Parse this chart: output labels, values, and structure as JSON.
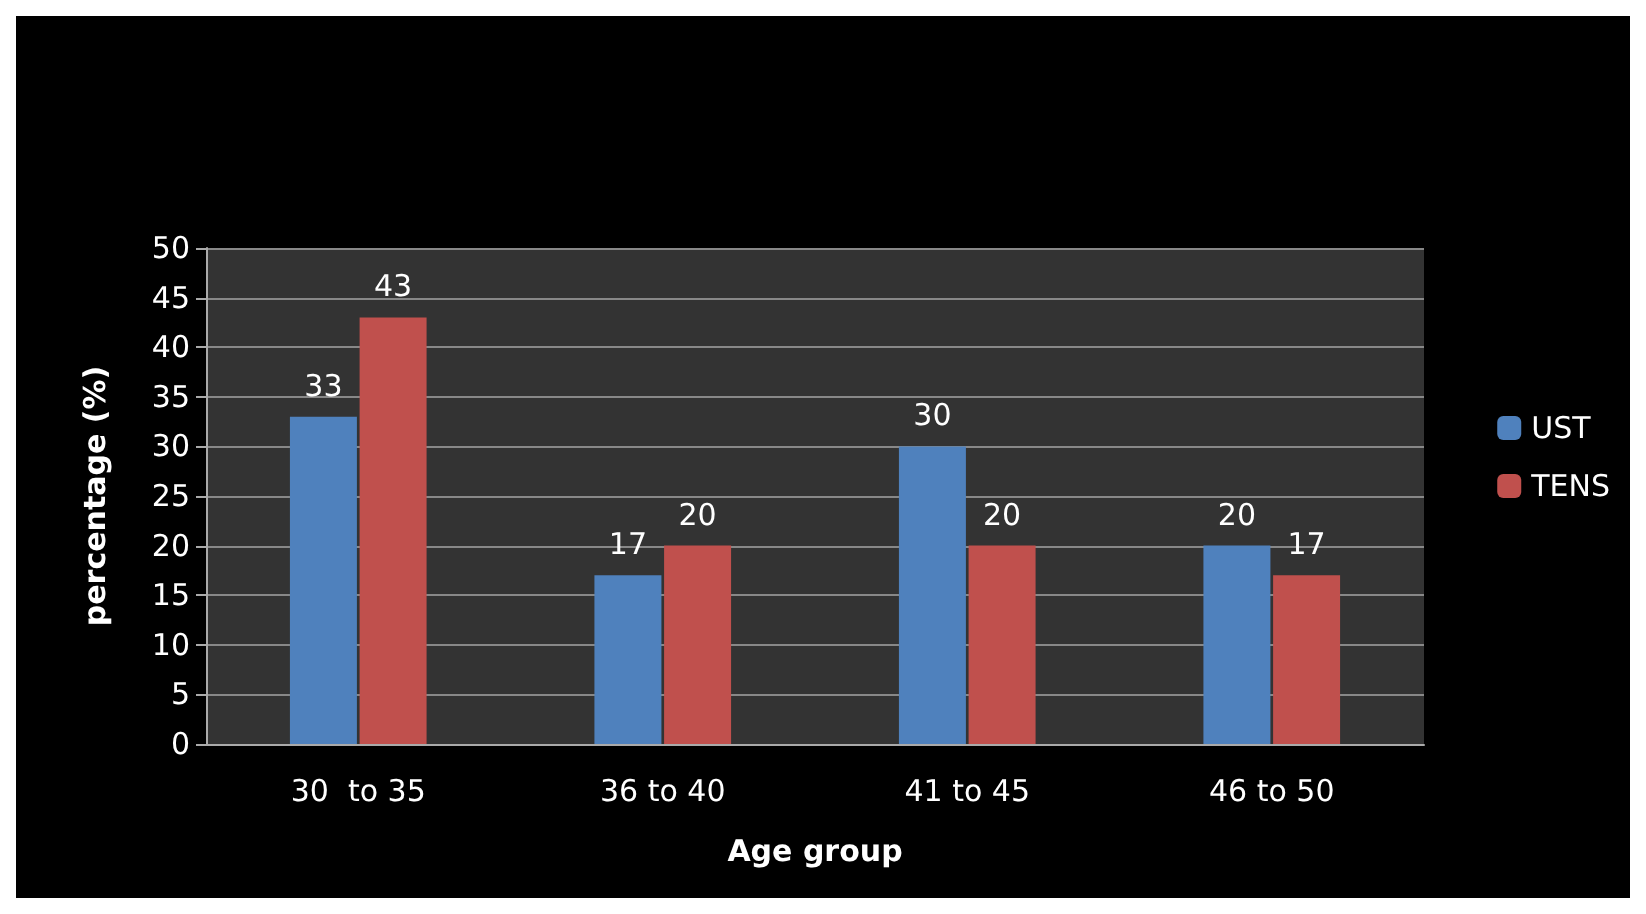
{
  "chart_data": {
    "type": "bar",
    "xlabel": "Age group",
    "ylabel": "percentage (%)",
    "categories": [
      "30  to 35",
      "36 to 40",
      "41 to 45",
      "46 to 50"
    ],
    "series": [
      {
        "name": "UST",
        "color": "#4f81bd",
        "values": [
          33,
          17,
          30,
          20
        ]
      },
      {
        "name": "TENS",
        "color": "#c0504d",
        "values": [
          43,
          20,
          20,
          17
        ]
      }
    ],
    "ylim": [
      0,
      50
    ],
    "yticks": [
      0,
      5,
      10,
      15,
      20,
      25,
      30,
      35,
      40,
      45,
      50
    ],
    "grid": "y",
    "legend": "right",
    "data_labels": true
  }
}
